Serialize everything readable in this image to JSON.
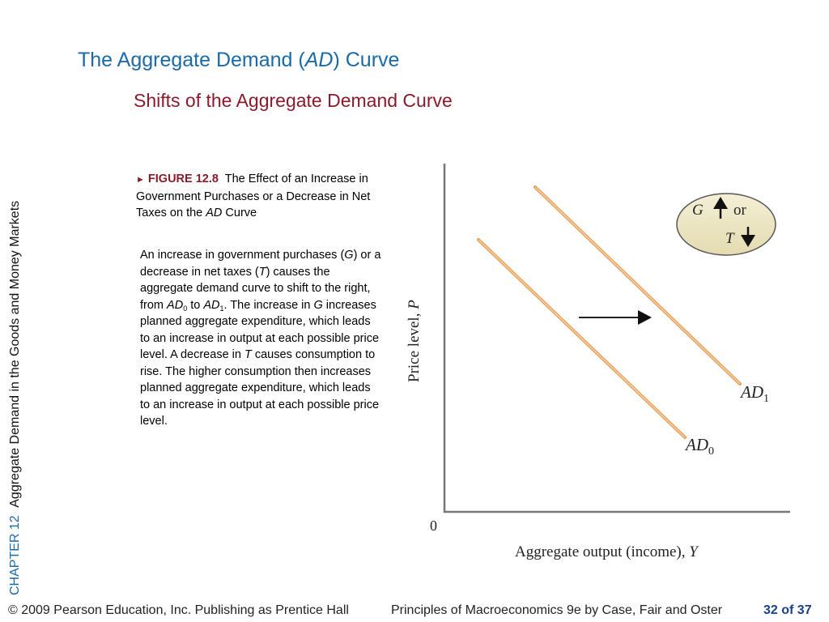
{
  "slide": {
    "title_main": "The Aggregate Demand (",
    "title_italic": "AD",
    "title_end": ") Curve",
    "subtitle": "Shifts of the Aggregate Demand Curve"
  },
  "sidebar": {
    "chapter": "CHAPTER 12",
    "chapter_title": "Aggregate Demand in the Goods and Money Markets"
  },
  "figure": {
    "marker": "►",
    "label": "FIGURE 12.8",
    "caption_a": "The Effect of an Increase in Government Purchases or a Decrease in Net Taxes on the ",
    "caption_ad": "AD",
    "caption_b": " Curve"
  },
  "body": {
    "t1": "An increase in government purchases (",
    "g1": "G",
    "t2": ") or a decrease in net taxes (",
    "tt1": "T",
    "t3": ") causes the aggregate demand curve to shift to the right, from ",
    "ad0": "AD",
    "sub0": "0",
    "t4": " to ",
    "ad1": "AD",
    "sub1": "1",
    "t5": ". The increase in ",
    "g2": "G",
    "t6": " increases planned aggregate expenditure, which leads to an increase in output at each possible price level.  A decrease in ",
    "tt2": "T",
    "t7": " causes consumption to rise. The higher consumption then increases planned aggregate expenditure, which leads to an increase in output at each possible price level."
  },
  "diagram": {
    "y_axis_label": "Price level, ",
    "y_axis_var": "P",
    "x_axis_label": "Aggregate output (income), ",
    "x_axis_var": "Y",
    "origin": "0",
    "curve_ad0": "AD",
    "curve_ad0_sub": "0",
    "curve_ad1": "AD",
    "curve_ad1_sub": "1",
    "ellipse_g": "G",
    "ellipse_or": "or",
    "ellipse_t": "T",
    "curve_color": "#e8a05a",
    "ellipse_fill": "#efe8c8"
  },
  "footer": {
    "copyright": "© 2009 Pearson Education, Inc. Publishing as Prentice Hall",
    "book": "Principles of Macroeconomics 9e by Case, Fair and Oster",
    "page": "32 of 37"
  }
}
